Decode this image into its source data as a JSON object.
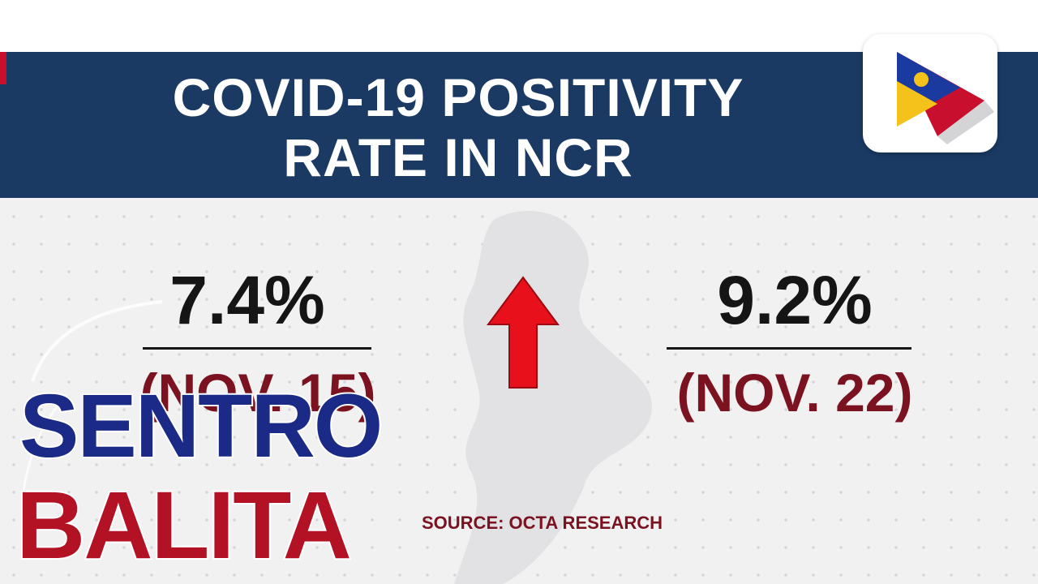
{
  "infographic": {
    "title_line1": "COVID-19 POSITIVITY",
    "title_line2": "RATE IN NCR",
    "previous": {
      "value": "7.4%",
      "date": "(NOV. 15)"
    },
    "current": {
      "value": "9.2%",
      "date": "(NOV. 22)"
    },
    "trend_icon": "up-arrow-icon",
    "source": "SOURCE: OCTA RESEARCH"
  },
  "program": {
    "name_line1": "SENTRO",
    "name_line2": "BALITA"
  },
  "network_logo_icon": "ptv-logo-icon",
  "colors": {
    "banner": "#1a3a64",
    "value_text": "#151515",
    "date_text": "#7a1220",
    "arrow": "#e8101a",
    "sentro": "#1a2a86",
    "balita": "#b31224"
  }
}
